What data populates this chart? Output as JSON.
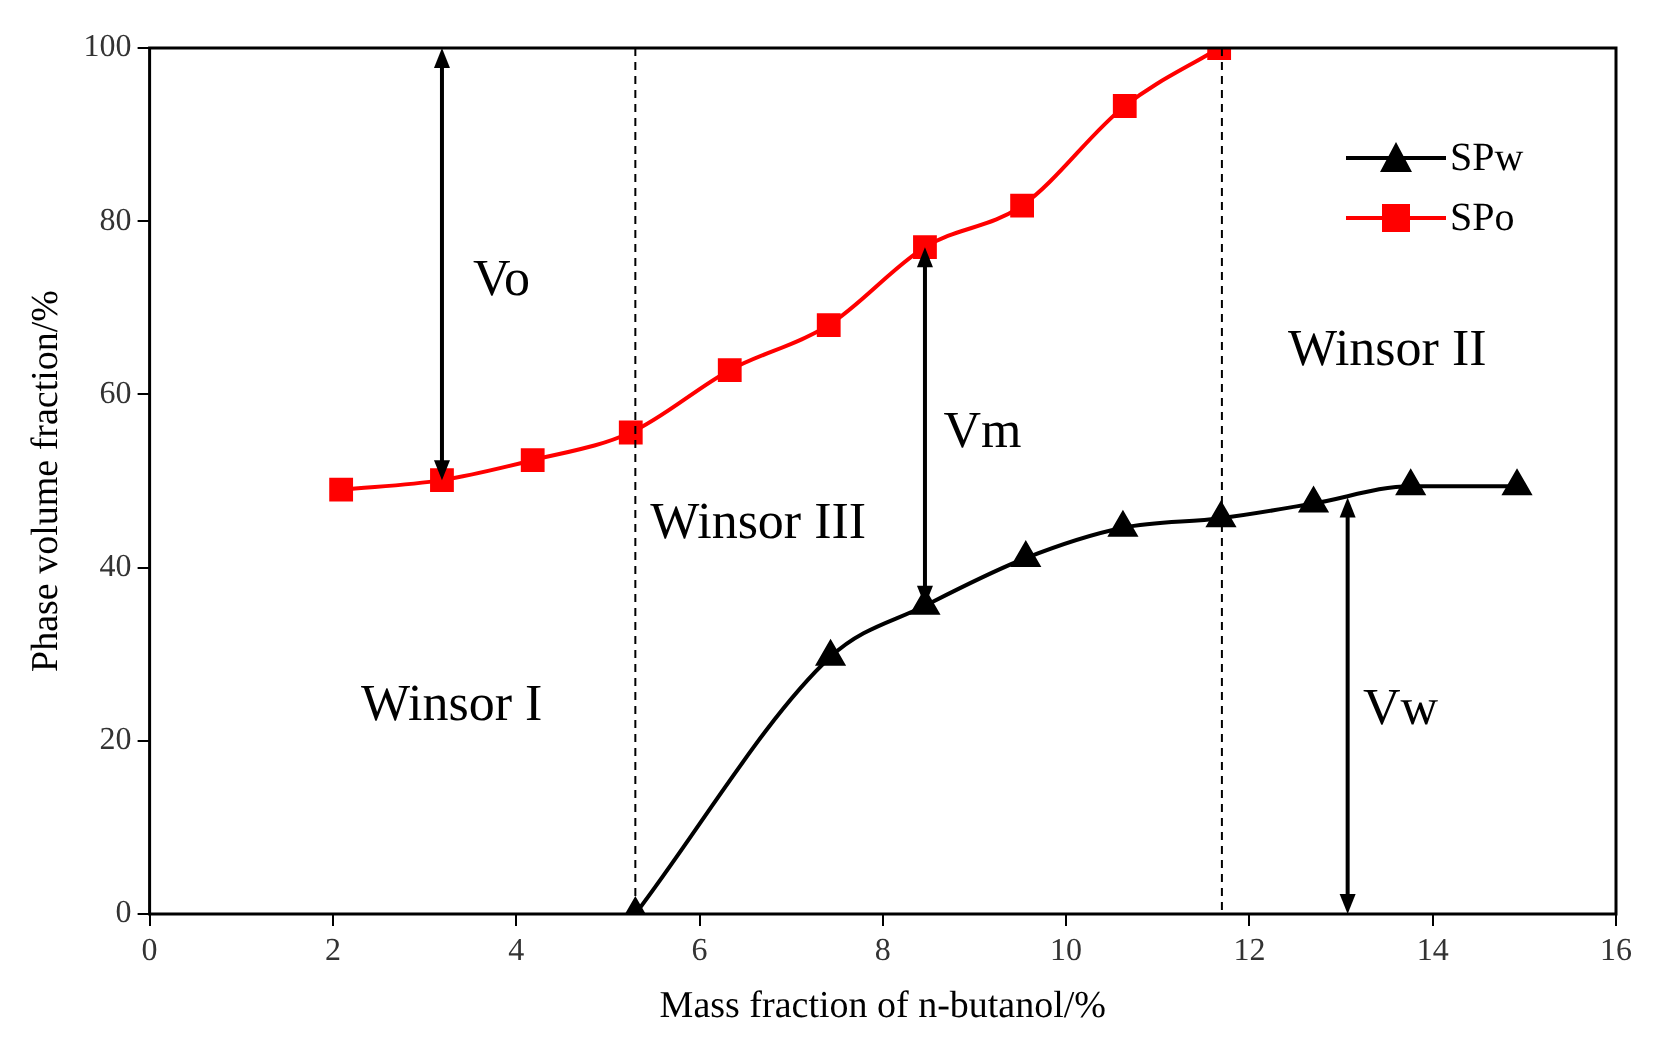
{
  "chart_data": {
    "type": "line",
    "xlabel": "Mass fraction of n-butanol/%",
    "ylabel": "Phase volume fraction/%",
    "xlim": [
      0,
      16
    ],
    "xticks": [
      0,
      2,
      4,
      6,
      8,
      10,
      12,
      14,
      16
    ],
    "ylim": [
      0,
      100
    ],
    "yticks": [
      0,
      20,
      40,
      60,
      80,
      100
    ],
    "grid": false,
    "legend": "top right",
    "line_style": "solid",
    "series": [
      {
        "name": "SPw",
        "color": "#000000",
        "marker": "triangle",
        "x": [
          5.3,
          7.43,
          8.46,
          9.56,
          10.62,
          11.69,
          12.7,
          13.76,
          14.92
        ],
        "values": [
          0,
          29.7,
          35.6,
          41.1,
          44.6,
          45.7,
          47.4,
          49.4,
          49.4
        ]
      },
      {
        "name": "SPo",
        "color": "#ff0000",
        "marker": "square",
        "x": [
          2.09,
          3.19,
          4.18,
          5.25,
          6.33,
          7.41,
          8.46,
          9.52,
          10.64,
          11.67
        ],
        "values": [
          49.0,
          50.1,
          52.4,
          55.6,
          62.8,
          68.0,
          77.0,
          81.8,
          93.3,
          100
        ]
      }
    ],
    "ref_lines": [
      {
        "axis": "x",
        "value": 5.3,
        "line_style": "dashed",
        "color": "#000000"
      },
      {
        "axis": "x",
        "value": 11.7,
        "line_style": "dashed",
        "color": "#000000"
      }
    ],
    "annotations": [
      "Winsor I",
      "Winsor III",
      "Winsor II",
      "Vo",
      "Vm",
      "Vw"
    ]
  }
}
